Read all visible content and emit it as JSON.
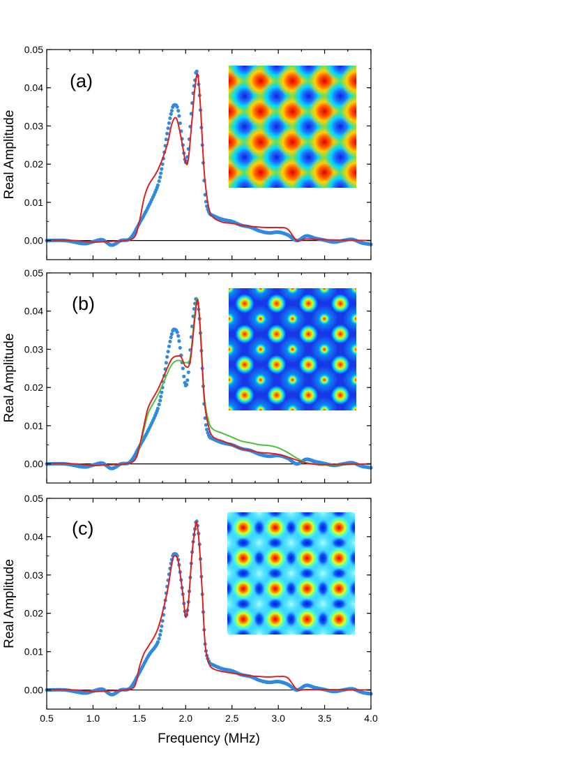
{
  "chart_data": [
    {
      "type": "line",
      "panel_label": "(a)",
      "ylabel": "Real Amplitude",
      "xlim": [
        0.5,
        4.0
      ],
      "ylim": [
        -0.005,
        0.05
      ],
      "yticks": [
        "0.00",
        "0.01",
        "0.02",
        "0.03",
        "0.04",
        "0.05"
      ],
      "inset_pattern": "square",
      "series": [
        {
          "color": "#2f8ae0",
          "style": "points",
          "x": [
            0.5,
            0.7,
            0.9,
            1.0,
            1.1,
            1.2,
            1.3,
            1.4,
            1.5,
            1.6,
            1.7,
            1.75,
            1.8,
            1.85,
            1.88,
            1.92,
            1.97,
            2.0,
            2.03,
            2.07,
            2.1,
            2.12,
            2.15,
            2.18,
            2.21,
            2.25,
            2.3,
            2.4,
            2.5,
            2.6,
            2.7,
            2.8,
            2.9,
            3.0,
            3.1,
            3.2,
            3.3,
            3.4,
            3.5,
            3.6,
            3.7,
            3.8,
            3.9,
            4.0
          ],
          "y": [
            0.0,
            0.0,
            -0.0008,
            -0.0003,
            0.0002,
            -0.0012,
            0.0,
            0.0005,
            0.0045,
            0.009,
            0.0145,
            0.02,
            0.028,
            0.034,
            0.0355,
            0.034,
            0.025,
            0.0205,
            0.024,
            0.036,
            0.042,
            0.0443,
            0.038,
            0.025,
            0.012,
            0.0075,
            0.0065,
            0.0055,
            0.005,
            0.004,
            0.0035,
            0.0025,
            0.002,
            0.0022,
            0.0015,
            0.0,
            0.0012,
            0.0006,
            0.0001,
            -0.0004,
            0.0,
            0.0003,
            -0.0006,
            -0.001
          ]
        },
        {
          "color": "#dc1f1f",
          "style": "line",
          "x": [
            0.5,
            0.8,
            1.0,
            1.2,
            1.35,
            1.45,
            1.5,
            1.55,
            1.6,
            1.7,
            1.8,
            1.85,
            1.9,
            1.95,
            2.0,
            2.03,
            2.07,
            2.1,
            2.13,
            2.16,
            2.2,
            2.25,
            2.3,
            2.4,
            2.5,
            2.6,
            2.7,
            2.8,
            2.9,
            3.0,
            3.1,
            3.2,
            3.3,
            3.5,
            4.0
          ],
          "y": [
            0.0001,
            0.0,
            -0.0004,
            -0.0002,
            0.0,
            0.001,
            0.005,
            0.011,
            0.0145,
            0.0185,
            0.025,
            0.0305,
            0.032,
            0.027,
            0.0205,
            0.0215,
            0.032,
            0.04,
            0.0435,
            0.035,
            0.018,
            0.0085,
            0.006,
            0.0048,
            0.0045,
            0.004,
            0.0037,
            0.0035,
            0.0034,
            0.0034,
            0.003,
            0.0,
            0.0004,
            0.0002,
            0.0
          ]
        }
      ]
    },
    {
      "type": "line",
      "panel_label": "(b)",
      "ylabel": "Real Amplitude",
      "xlim": [
        0.5,
        4.0
      ],
      "ylim": [
        -0.005,
        0.05
      ],
      "yticks": [
        "0.00",
        "0.01",
        "0.02",
        "0.03",
        "0.04",
        "0.05"
      ],
      "inset_pattern": "dots",
      "series": [
        {
          "color": "#2f8ae0",
          "style": "points",
          "x": [
            0.5,
            0.7,
            0.9,
            1.0,
            1.1,
            1.2,
            1.3,
            1.4,
            1.5,
            1.6,
            1.7,
            1.75,
            1.8,
            1.85,
            1.88,
            1.92,
            1.97,
            2.0,
            2.03,
            2.07,
            2.1,
            2.12,
            2.15,
            2.18,
            2.21,
            2.25,
            2.3,
            2.4,
            2.5,
            2.6,
            2.7,
            2.8,
            2.9,
            3.0,
            3.1,
            3.2,
            3.3,
            3.4,
            3.5,
            3.6,
            3.7,
            3.8,
            3.9,
            4.0
          ],
          "y": [
            0.0,
            0.0,
            -0.0008,
            -0.0003,
            0.0002,
            -0.0012,
            0.0,
            0.0005,
            0.0045,
            0.009,
            0.0145,
            0.02,
            0.028,
            0.034,
            0.0352,
            0.0335,
            0.025,
            0.0205,
            0.024,
            0.036,
            0.042,
            0.043,
            0.038,
            0.025,
            0.012,
            0.0075,
            0.0065,
            0.0055,
            0.005,
            0.004,
            0.0035,
            0.0025,
            0.002,
            0.0022,
            0.0015,
            0.0,
            0.0012,
            0.0006,
            0.0001,
            -0.0004,
            0.0,
            0.0003,
            -0.0006,
            -0.001
          ]
        },
        {
          "color": "#4fbf3f",
          "style": "line",
          "x": [
            0.5,
            0.8,
            1.0,
            1.2,
            1.35,
            1.45,
            1.5,
            1.55,
            1.6,
            1.7,
            1.8,
            1.85,
            1.9,
            1.95,
            2.0,
            2.05,
            2.1,
            2.13,
            2.16,
            2.2,
            2.25,
            2.3,
            2.4,
            2.5,
            2.6,
            2.7,
            2.8,
            2.9,
            3.0,
            3.1,
            3.2,
            3.3,
            3.4,
            3.5,
            4.0
          ],
          "y": [
            0.0001,
            0.0,
            -0.0004,
            -0.0002,
            0.0,
            0.001,
            0.004,
            0.009,
            0.0135,
            0.018,
            0.0235,
            0.026,
            0.027,
            0.027,
            0.0265,
            0.028,
            0.0395,
            0.0432,
            0.035,
            0.018,
            0.011,
            0.009,
            0.008,
            0.007,
            0.006,
            0.0055,
            0.005,
            0.0048,
            0.0042,
            0.003,
            0.0015,
            0.0003,
            0.0,
            -0.0003,
            0.0
          ]
        },
        {
          "color": "#dc1f1f",
          "style": "line",
          "x": [
            0.5,
            0.8,
            1.0,
            1.2,
            1.35,
            1.45,
            1.5,
            1.55,
            1.6,
            1.7,
            1.8,
            1.85,
            1.9,
            1.95,
            2.0,
            2.05,
            2.1,
            2.13,
            2.16,
            2.2,
            2.25,
            2.3,
            2.4,
            2.5,
            2.6,
            2.7,
            2.8,
            2.9,
            3.0,
            3.1,
            3.2,
            3.3,
            3.4,
            3.5,
            4.0
          ],
          "y": [
            0.0001,
            0.0,
            -0.0004,
            -0.0002,
            0.0,
            0.001,
            0.0045,
            0.01,
            0.015,
            0.0195,
            0.025,
            0.0275,
            0.0282,
            0.028,
            0.0255,
            0.027,
            0.0385,
            0.0428,
            0.034,
            0.017,
            0.0095,
            0.007,
            0.006,
            0.005,
            0.004,
            0.0035,
            0.003,
            0.0028,
            0.0025,
            0.0018,
            0.001,
            0.0002,
            -0.0001,
            -0.0002,
            0.0
          ]
        }
      ]
    },
    {
      "type": "line",
      "panel_label": "(c)",
      "ylabel": "Real Amplitude",
      "xlabel": "Frequency (MHz)",
      "xlim": [
        0.5,
        4.0
      ],
      "ylim": [
        -0.005,
        0.05
      ],
      "yticks": [
        "0.00",
        "0.01",
        "0.02",
        "0.03",
        "0.04",
        "0.05"
      ],
      "xticks": [
        "0.5",
        "1.0",
        "1.5",
        "2.0",
        "2.5",
        "3.0",
        "3.5",
        "4.0"
      ],
      "inset_pattern": "cross",
      "series": [
        {
          "color": "#2f8ae0",
          "style": "points",
          "x": [
            0.5,
            0.7,
            0.9,
            1.0,
            1.1,
            1.2,
            1.3,
            1.4,
            1.5,
            1.6,
            1.7,
            1.75,
            1.8,
            1.85,
            1.88,
            1.92,
            1.97,
            2.0,
            2.03,
            2.07,
            2.1,
            2.12,
            2.15,
            2.18,
            2.21,
            2.25,
            2.3,
            2.4,
            2.5,
            2.6,
            2.7,
            2.8,
            2.9,
            3.0,
            3.1,
            3.2,
            3.3,
            3.4,
            3.5,
            3.6,
            3.7,
            3.8,
            3.9,
            4.0
          ],
          "y": [
            0.0,
            0.0,
            -0.0008,
            -0.0003,
            0.0002,
            -0.0012,
            0.0,
            0.0005,
            0.0045,
            0.009,
            0.0125,
            0.018,
            0.027,
            0.034,
            0.0355,
            0.034,
            0.025,
            0.0195,
            0.023,
            0.036,
            0.042,
            0.044,
            0.038,
            0.025,
            0.012,
            0.0075,
            0.0065,
            0.0055,
            0.005,
            0.004,
            0.0035,
            0.0025,
            0.002,
            0.0022,
            0.0015,
            0.0,
            0.0012,
            0.0006,
            0.0001,
            -0.0004,
            0.0,
            0.0003,
            -0.0006,
            -0.001
          ]
        },
        {
          "color": "#dc1f1f",
          "style": "line",
          "x": [
            0.5,
            0.8,
            1.0,
            1.2,
            1.35,
            1.45,
            1.5,
            1.55,
            1.6,
            1.7,
            1.8,
            1.85,
            1.88,
            1.92,
            1.97,
            2.0,
            2.03,
            2.07,
            2.1,
            2.12,
            2.15,
            2.18,
            2.21,
            2.25,
            2.3,
            2.4,
            2.5,
            2.6,
            2.7,
            2.8,
            2.9,
            3.0,
            3.1,
            3.2,
            3.3,
            3.5,
            4.0
          ],
          "y": [
            0.0001,
            0.0,
            -0.0004,
            -0.0002,
            0.0,
            0.001,
            0.006,
            0.0095,
            0.0115,
            0.016,
            0.0255,
            0.033,
            0.035,
            0.0335,
            0.025,
            0.019,
            0.023,
            0.036,
            0.042,
            0.0437,
            0.037,
            0.025,
            0.012,
            0.007,
            0.0055,
            0.0048,
            0.0044,
            0.004,
            0.0037,
            0.0035,
            0.0034,
            0.0035,
            0.0032,
            0.0002,
            0.0001,
            0.0001,
            0.0
          ]
        }
      ]
    }
  ]
}
